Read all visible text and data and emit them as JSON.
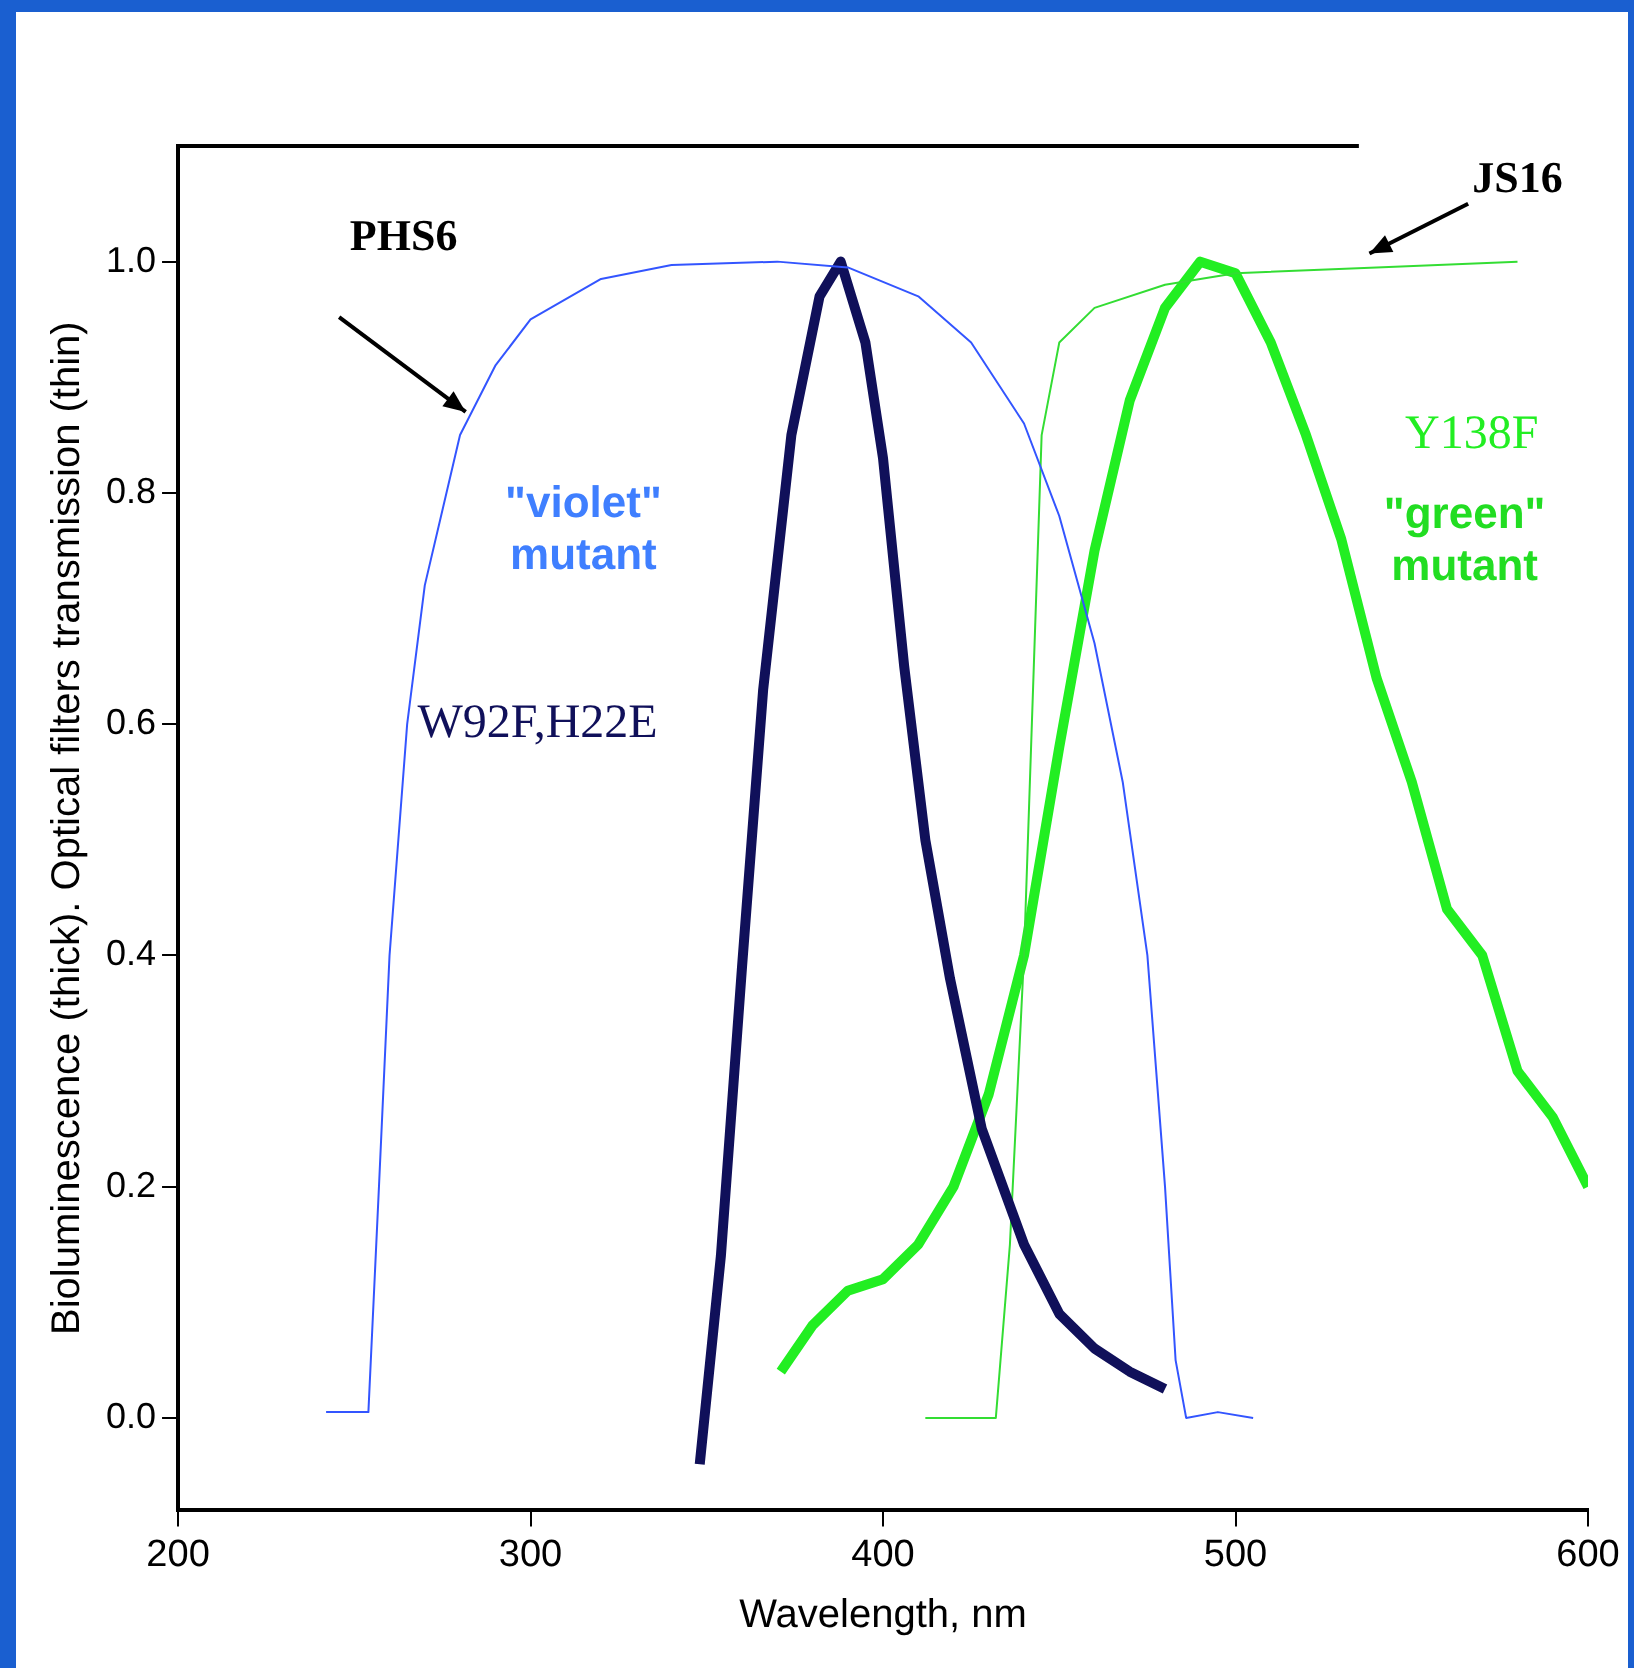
{
  "chart_data": {
    "type": "line",
    "xlabel": "Wavelength, nm",
    "ylabel": "Bioluminescence (thick). Optical filters transmission (thin)",
    "xlim": [
      200,
      600
    ],
    "xticks": [
      200,
      300,
      400,
      500,
      600
    ],
    "ylim": [
      -0.08,
      1.1
    ],
    "yticks": [
      {
        "value": 0,
        "label": "0.0"
      },
      {
        "value": 0.2,
        "label": "0.2"
      },
      {
        "value": 0.4,
        "label": "0.4"
      },
      {
        "value": 0.6,
        "label": "0.6"
      },
      {
        "value": 0.8,
        "label": "0.8"
      },
      {
        "value": 1,
        "label": "1.0"
      }
    ],
    "grid": false,
    "legend": false,
    "marker": "none",
    "line_style": "solid",
    "annotations": [
      "\"violet\" mutant",
      "\"green\" mutant"
    ],
    "series": [
      {
        "name": "PHS6",
        "color": "#3355ff",
        "x": [
          242,
          254,
          257,
          260,
          265,
          270,
          280,
          290,
          300,
          320,
          340,
          370,
          390,
          410,
          425,
          440,
          450,
          460,
          468,
          475,
          480,
          483,
          486,
          495,
          505
        ],
        "values": [
          0.005,
          0.005,
          0.2,
          0.4,
          0.6,
          0.72,
          0.85,
          0.91,
          0.95,
          0.985,
          0.997,
          1.0,
          0.995,
          0.97,
          0.93,
          0.86,
          0.78,
          0.67,
          0.55,
          0.4,
          0.2,
          0.05,
          0.0,
          0.005,
          0.0
        ]
      },
      {
        "name": "W92F,H22E",
        "color": "#10105a",
        "x": [
          348,
          354,
          360,
          366,
          374,
          382,
          388,
          395,
          400,
          406,
          412,
          419,
          428,
          440,
          450,
          460,
          470,
          480
        ],
        "values": [
          -0.04,
          0.14,
          0.39,
          0.63,
          0.85,
          0.97,
          1.0,
          0.93,
          0.83,
          0.65,
          0.5,
          0.38,
          0.25,
          0.15,
          0.09,
          0.06,
          0.04,
          0.025
        ]
      },
      {
        "name": "JS16",
        "color": "#33dd33",
        "x": [
          412,
          432,
          436,
          440,
          445,
          450,
          460,
          480,
          500,
          540,
          580
        ],
        "values": [
          0.0,
          0.0,
          0.15,
          0.4,
          0.85,
          0.93,
          0.96,
          0.98,
          0.99,
          0.995,
          1.0
        ]
      },
      {
        "name": "Y138F",
        "color": "#22ee22",
        "x": [
          371,
          380,
          390,
          400,
          410,
          420,
          430,
          440,
          450,
          460,
          470,
          480,
          490,
          500,
          510,
          520,
          530,
          540,
          550,
          560,
          570,
          580,
          590,
          600
        ],
        "values": [
          0.04,
          0.08,
          0.11,
          0.12,
          0.15,
          0.2,
          0.28,
          0.4,
          0.58,
          0.75,
          0.88,
          0.96,
          1.0,
          0.99,
          0.93,
          0.85,
          0.76,
          0.64,
          0.55,
          0.44,
          0.4,
          0.3,
          0.26,
          0.2
        ]
      }
    ]
  }
}
